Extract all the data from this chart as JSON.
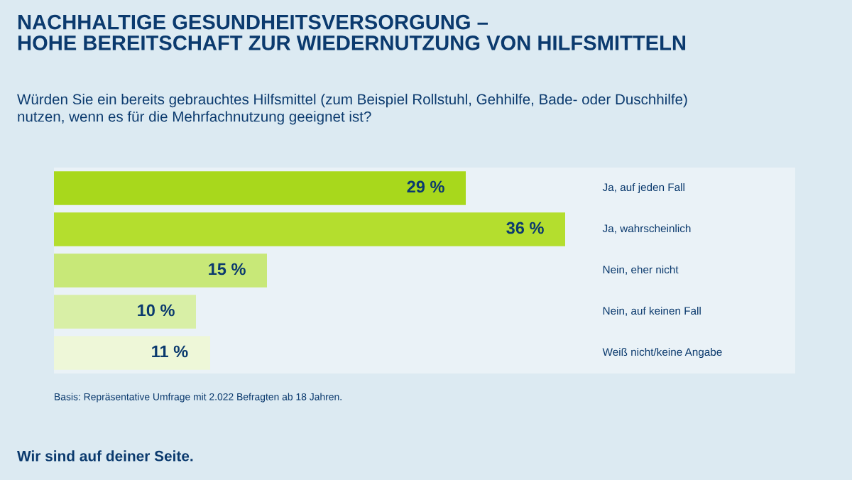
{
  "chart_data": {
    "type": "bar",
    "orientation": "horizontal",
    "title": "NACHHALTIGE GESUNDHEITSVERSORGUNG –\nHOHE BEREITSCHAFT ZUR WIEDERNUTZUNG VON HILFSMITTELN",
    "subtitle": "Würden Sie ein bereits gebrauchtes Hilfsmittel (zum Beispiel Rollstuhl, Gehhilfe, Bade- oder Duschhilfe)\nnutzen, wenn es für die Mehrfachnutzung geeignet ist?",
    "categories": [
      "Ja, auf jeden Fall",
      "Ja, wahrscheinlich",
      "Nein, eher nicht",
      "Nein, auf keinen Fall",
      "Weiß nicht/keine Angabe"
    ],
    "values": [
      29,
      36,
      15,
      10,
      11
    ],
    "value_labels": [
      "29 %",
      "36 %",
      "15 %",
      "10 %",
      "11 %"
    ],
    "colors": [
      "#a8d81c",
      "#b4de2e",
      "#c8e878",
      "#d8efa6",
      "#eef7d8"
    ],
    "annotations": [
      "Basis: Repräsentative Umfrage mit 2.022 Befragten ab 18 Jahren.",
      "Wir sind auf deiner Seite."
    ],
    "legend": false
  }
}
